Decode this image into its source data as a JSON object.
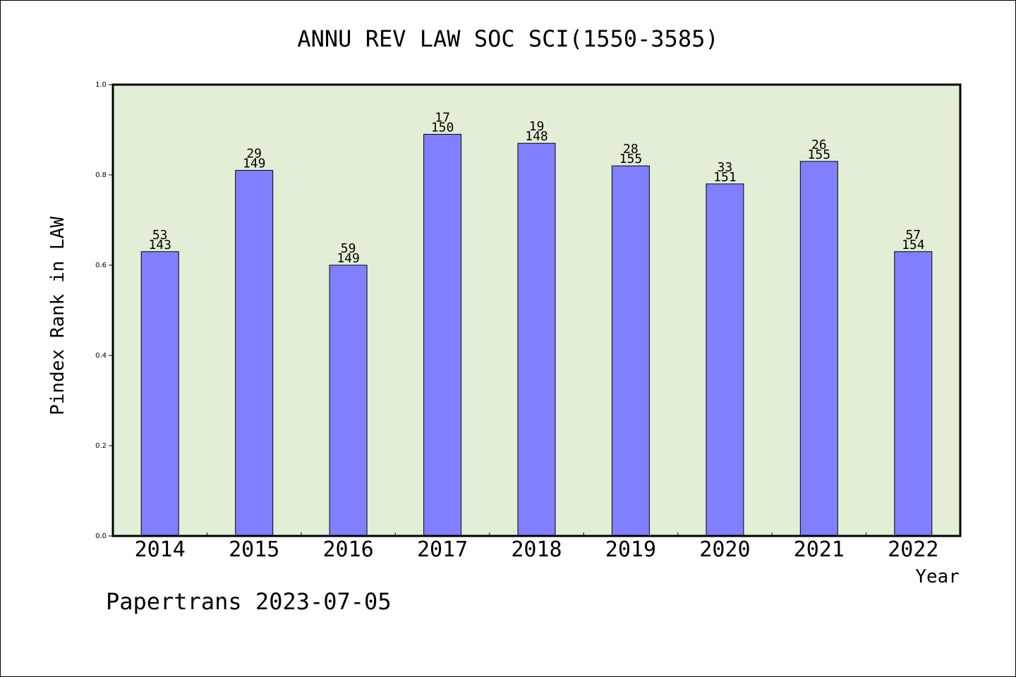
{
  "chart_data": {
    "type": "bar",
    "title": "ANNU REV LAW SOC SCI(1550-3585)",
    "xlabel": "Year",
    "ylabel": "Pindex Rank in LAW",
    "ylim": [
      0.0,
      1.0
    ],
    "yticks": [
      "0.0",
      "0.2",
      "0.4",
      "0.6",
      "0.8",
      "1.0"
    ],
    "categories": [
      "2014",
      "2015",
      "2016",
      "2017",
      "2018",
      "2019",
      "2020",
      "2021",
      "2022"
    ],
    "values": [
      0.63,
      0.81,
      0.6,
      0.89,
      0.87,
      0.82,
      0.78,
      0.83,
      0.63
    ],
    "rank_labels": [
      "53",
      "29",
      "59",
      "17",
      "19",
      "28",
      "33",
      "26",
      "57"
    ],
    "total_labels": [
      "143",
      "149",
      "149",
      "150",
      "148",
      "155",
      "151",
      "155",
      "154"
    ],
    "grid": false,
    "legend": "none",
    "colors": {
      "plot_background": "#e2efd6",
      "bar_fill": "#8080ff",
      "bar_stroke": "#000000"
    }
  },
  "footer": {
    "credit": "Papertrans 2023-07-05"
  }
}
